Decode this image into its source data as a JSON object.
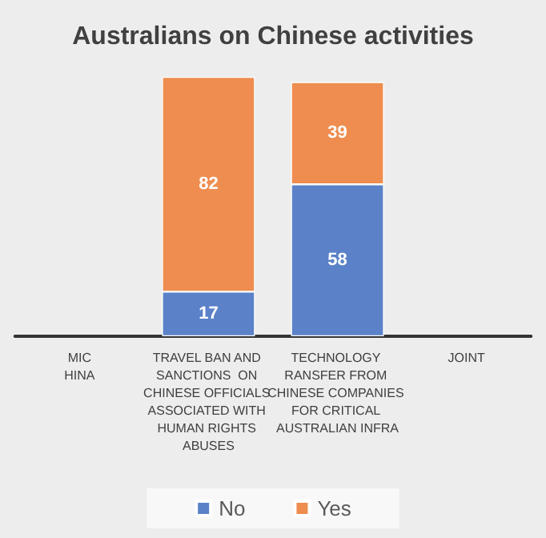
{
  "chart_data": {
    "type": "bar",
    "title": "Australians on Chinese activities",
    "stacked": true,
    "data_labels": true,
    "legend": "bottom",
    "categories": [
      "MIC\nHINA",
      "TRAVEL BAN AND SANCTIONS  ON CHINESE OFFICIALS ASSOCIATED WITH HUMAN RIGHTS ABUSES",
      "TECHNOLOGY RANSFER FROM CHINESE COMPANIES FOR CRITICAL AUSTRALIAN INFRA",
      "JOINT"
    ],
    "series": [
      {
        "name": "No",
        "color": "#5b82c8",
        "values": [
          null,
          17,
          58,
          null
        ]
      },
      {
        "name": "Yes",
        "color": "#ee8d4f",
        "values": [
          null,
          82,
          39,
          null
        ]
      }
    ]
  }
}
